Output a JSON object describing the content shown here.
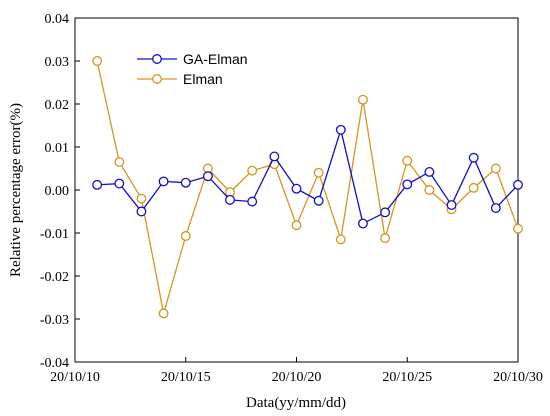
{
  "chart_data": {
    "type": "line",
    "xlabel": "Data(yy/mm/dd)",
    "ylabel": "Relative percentage error(%)",
    "xlim": [
      10,
      30
    ],
    "ylim": [
      -0.04,
      0.04
    ],
    "x_ticks": [
      10,
      15,
      20,
      25,
      30
    ],
    "x_tick_labels": [
      "20/10/10",
      "20/10/15",
      "20/10/20",
      "20/10/25",
      "20/10/30"
    ],
    "y_ticks": [
      -0.04,
      -0.03,
      -0.02,
      -0.01,
      0.0,
      0.01,
      0.02,
      0.03,
      0.04
    ],
    "y_tick_labels": [
      "-0.04",
      "-0.03",
      "-0.02",
      "-0.01",
      "0.00",
      "0.01",
      "0.02",
      "0.03",
      "0.04"
    ],
    "grid": false,
    "legend_position": "top-left",
    "x": [
      11,
      12,
      13,
      14,
      15,
      16,
      17,
      18,
      19,
      20,
      21,
      22,
      23,
      24,
      25,
      26,
      27,
      28,
      29,
      30
    ],
    "series": [
      {
        "name": "GA-Elman",
        "color": "#1010c8",
        "values": [
          0.0012,
          0.0015,
          -0.005,
          0.002,
          0.0017,
          0.0032,
          -0.0023,
          -0.0027,
          0.0078,
          0.0003,
          -0.0025,
          0.014,
          -0.0078,
          -0.0052,
          0.0013,
          0.0042,
          -0.0035,
          0.0075,
          -0.0042,
          0.0012
        ]
      },
      {
        "name": "Elman",
        "color": "#d4961c",
        "values": [
          0.03,
          0.0065,
          -0.002,
          -0.0287,
          -0.0107,
          0.005,
          -0.0005,
          0.0045,
          0.006,
          -0.0082,
          0.004,
          -0.0115,
          0.021,
          -0.0112,
          0.0068,
          0.0,
          -0.0045,
          0.0005,
          0.005,
          -0.009
        ]
      }
    ]
  }
}
